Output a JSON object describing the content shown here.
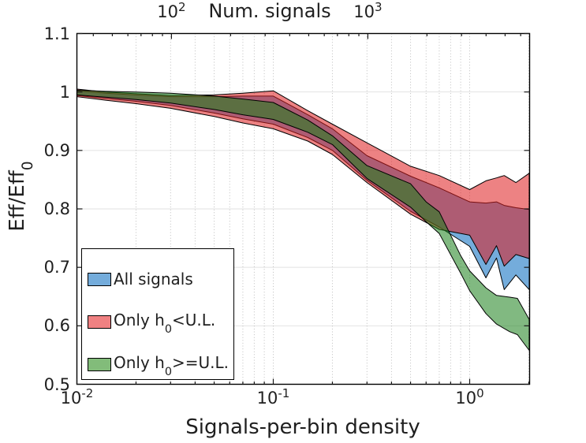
{
  "figure": {
    "background": "#ffffff",
    "frame_color": "#000000",
    "grid_horizontal_color": "#e2e2e2",
    "grid_vertical_color": "#bdbdbd",
    "tick_color": "#1a1a1a",
    "text_color": "#1f1f1f"
  },
  "chart_data": {
    "type": "area",
    "x_scale": "log",
    "xlim": [
      0.01,
      2.02
    ],
    "ylim": [
      0.5,
      1.1
    ],
    "grid": true,
    "xlabel": "Signals-per-bin density",
    "ylabel_main": "Eff/Eff",
    "ylabel_sub": "0",
    "x_tick_exponents": [
      -2,
      -1,
      0
    ],
    "y_tick_labels": [
      "1.1",
      "1",
      "0.9",
      "0.8",
      "0.7",
      "0.6",
      "0.5"
    ],
    "y_tick_values": [
      1.1,
      1.0,
      0.9,
      0.8,
      0.7,
      0.6,
      0.5
    ],
    "top_axis": {
      "label": "Num. signals",
      "tick_exponents": [
        2,
        3
      ],
      "signals_per_density": 3300
    },
    "series": [
      {
        "name": "All signals",
        "fill": "#74ACDB",
        "fill_opacity": 1.0,
        "edge": "#000000",
        "x": [
          0.01,
          0.014,
          0.02,
          0.03,
          0.05,
          0.07,
          0.1,
          0.15,
          0.2,
          0.3,
          0.5,
          0.7,
          1.0,
          1.21,
          1.37,
          1.5,
          1.72,
          2.01
        ],
        "upper": [
          1.002,
          0.998,
          0.995,
          0.992,
          0.992,
          0.993,
          0.993,
          0.961,
          0.937,
          0.891,
          0.856,
          0.836,
          0.812,
          0.81,
          0.812,
          0.806,
          0.802,
          0.799
        ],
        "lower": [
          0.994,
          0.989,
          0.984,
          0.977,
          0.964,
          0.954,
          0.945,
          0.922,
          0.9,
          0.849,
          0.796,
          0.769,
          0.736,
          0.682,
          0.716,
          0.662,
          0.687,
          0.662
        ]
      },
      {
        "name": "Only h0<U.L.",
        "fill": "#DE1C1E",
        "fill_opacity": 0.55,
        "edge": "#000000",
        "x": [
          0.01,
          0.014,
          0.02,
          0.03,
          0.05,
          0.07,
          0.1,
          0.15,
          0.2,
          0.3,
          0.5,
          0.7,
          1.0,
          1.21,
          1.37,
          1.5,
          1.72,
          2.01
        ],
        "upper": [
          1.005,
          1.0,
          0.997,
          0.994,
          0.995,
          0.998,
          1.002,
          0.968,
          0.945,
          0.913,
          0.873,
          0.857,
          0.833,
          0.848,
          0.853,
          0.857,
          0.845,
          0.861
        ],
        "lower": [
          0.992,
          0.986,
          0.98,
          0.972,
          0.958,
          0.947,
          0.937,
          0.916,
          0.893,
          0.845,
          0.791,
          0.765,
          0.755,
          0.705,
          0.737,
          0.702,
          0.722,
          0.715
        ]
      },
      {
        "name": "Only h0>=U.L.",
        "fill": "#1A801A",
        "fill_opacity": 0.55,
        "edge": "#000000",
        "x": [
          0.01,
          0.014,
          0.02,
          0.03,
          0.05,
          0.07,
          0.1,
          0.15,
          0.2,
          0.3,
          0.5,
          0.6,
          0.7,
          0.9,
          1.0,
          1.21,
          1.37,
          1.6,
          1.75,
          2.01
        ],
        "upper": [
          1.003,
          1.001,
          1.0,
          0.998,
          0.993,
          0.988,
          0.982,
          0.952,
          0.925,
          0.874,
          0.843,
          0.812,
          0.795,
          0.72,
          0.694,
          0.665,
          0.652,
          0.649,
          0.647,
          0.611
        ],
        "lower": [
          0.995,
          0.991,
          0.987,
          0.981,
          0.97,
          0.961,
          0.953,
          0.931,
          0.91,
          0.852,
          0.803,
          0.778,
          0.758,
          0.69,
          0.66,
          0.621,
          0.603,
          0.59,
          0.585,
          0.558
        ]
      }
    ]
  },
  "legend": {
    "items": [
      {
        "pre": "All signals",
        "sub": "",
        "post": "",
        "color": "#74ACDB"
      },
      {
        "pre": "Only h",
        "sub": "0",
        "post": "<U.L.",
        "color": "#F08182"
      },
      {
        "pre": "Only h",
        "sub": "0",
        "post": ">=U.L.",
        "color": "#82BC7A"
      }
    ]
  }
}
